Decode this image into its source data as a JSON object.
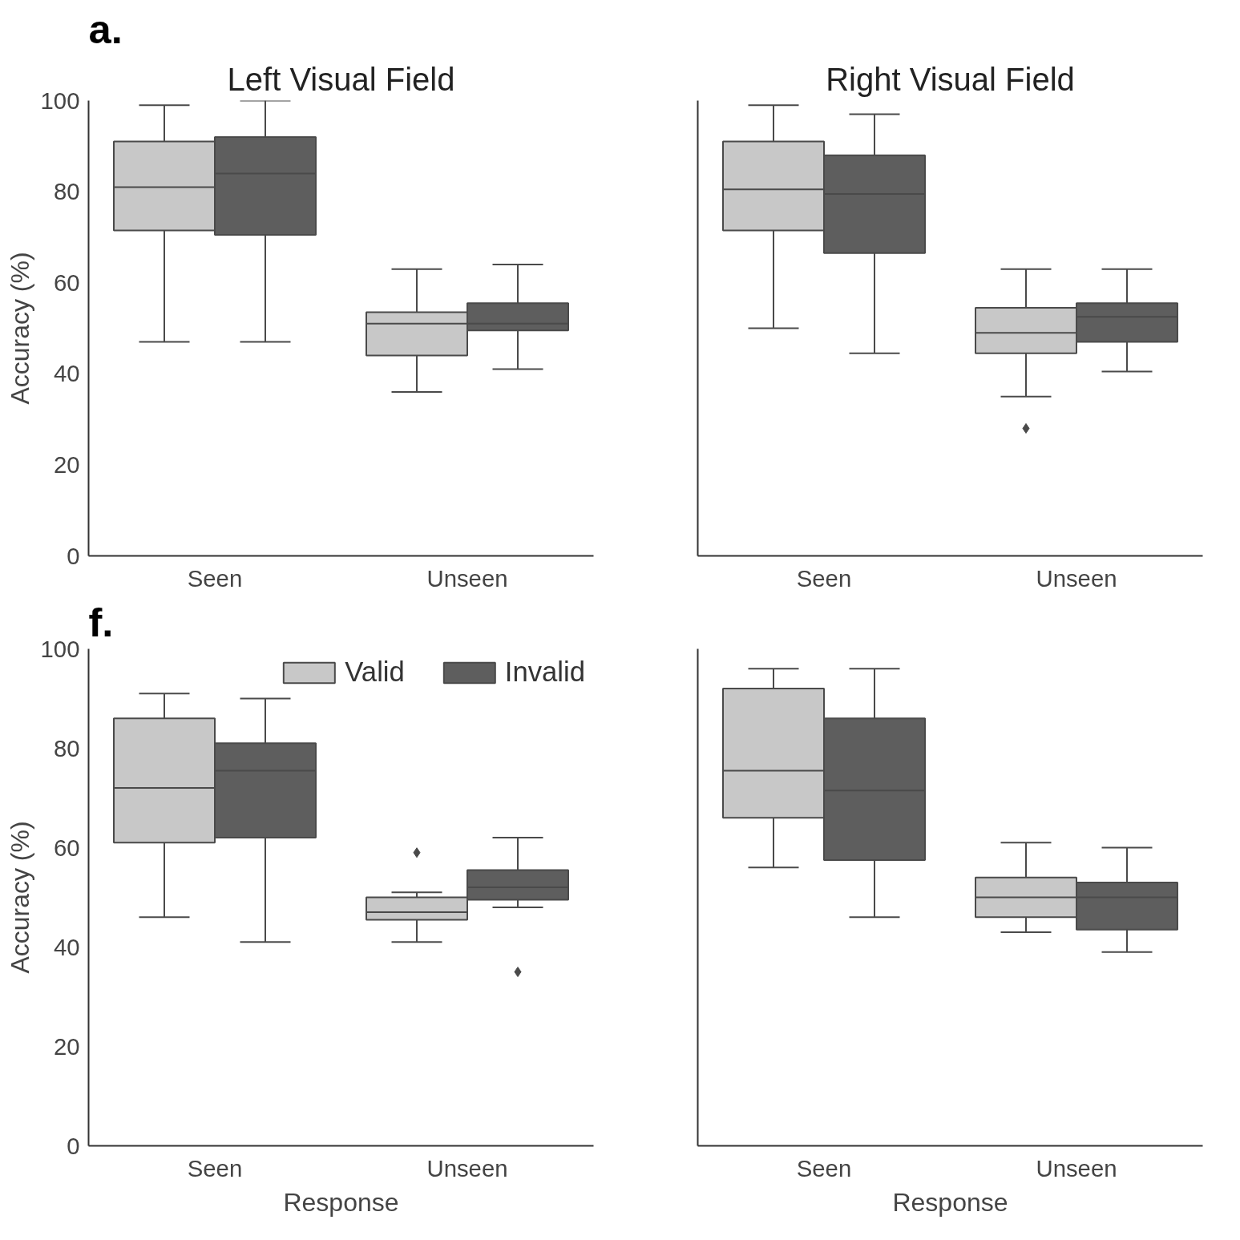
{
  "chart_data": [
    {
      "type": "box",
      "title": "Left Visual Field",
      "ylabel": "Accuracy (%)",
      "annotations": [
        "a."
      ],
      "categories": [
        "Seen",
        "Unseen"
      ],
      "ylim": [
        0,
        100
      ],
      "yticks": [
        0,
        20,
        40,
        60,
        80,
        100
      ],
      "grid": false,
      "legend": false,
      "series": [
        {
          "color": "#c8c8c8",
          "boxes": [
            {
              "low": 47,
              "q1": 71.5,
              "median": 81,
              "q3": 91,
              "high": 99
            },
            {
              "low": 36,
              "q1": 44,
              "median": 51,
              "q3": 53.5,
              "high": 63
            }
          ]
        },
        {
          "color": "#5e5e5e",
          "boxes": [
            {
              "low": 47,
              "q1": 70.5,
              "median": 84,
              "q3": 92,
              "high": 100
            },
            {
              "low": 41,
              "q1": 49.5,
              "median": 51,
              "q3": 55.5,
              "high": 64
            }
          ]
        }
      ]
    },
    {
      "type": "box",
      "title": "Right Visual Field",
      "categories": [
        "Seen",
        "Unseen"
      ],
      "ylim": [
        0,
        100
      ],
      "yticks": [
        0,
        20,
        40,
        60,
        80,
        100
      ],
      "tick_labels": "x",
      "grid": false,
      "legend": false,
      "series": [
        {
          "color": "#c8c8c8",
          "boxes": [
            {
              "low": 50,
              "q1": 71.5,
              "median": 80.5,
              "q3": 91,
              "high": 99
            },
            {
              "low": 35,
              "q1": 44.5,
              "median": 49,
              "q3": 54.5,
              "high": 63,
              "outliers": [
                28
              ]
            }
          ]
        },
        {
          "color": "#5e5e5e",
          "boxes": [
            {
              "low": 44.5,
              "q1": 66.5,
              "median": 79.5,
              "q3": 88,
              "high": 97
            },
            {
              "low": 40.5,
              "q1": 47,
              "median": 52.5,
              "q3": 55.5,
              "high": 63
            }
          ]
        }
      ]
    },
    {
      "type": "box",
      "xlabel": "Response",
      "ylabel": "Accuracy (%)",
      "annotations": [
        "f."
      ],
      "categories": [
        "Seen",
        "Unseen"
      ],
      "ylim": [
        0,
        100
      ],
      "yticks": [
        0,
        20,
        40,
        60,
        80,
        100
      ],
      "grid": false,
      "legend": "top right",
      "series": [
        {
          "name": "Valid",
          "color": "#c8c8c8",
          "boxes": [
            {
              "low": 46,
              "q1": 61,
              "median": 72,
              "q3": 86,
              "high": 91
            },
            {
              "low": 41,
              "q1": 45.5,
              "median": 47,
              "q3": 50,
              "high": 51,
              "outliers": [
                59
              ]
            }
          ]
        },
        {
          "name": "Invalid",
          "color": "#5e5e5e",
          "boxes": [
            {
              "low": 41,
              "q1": 62,
              "median": 75.5,
              "q3": 81,
              "high": 90
            },
            {
              "low": 48,
              "q1": 49.5,
              "median": 52,
              "q3": 55.5,
              "high": 62,
              "outliers": [
                35
              ]
            }
          ]
        }
      ]
    },
    {
      "type": "box",
      "xlabel": "Response",
      "categories": [
        "Seen",
        "Unseen"
      ],
      "ylim": [
        0,
        100
      ],
      "yticks": [
        0,
        20,
        40,
        60,
        80,
        100
      ],
      "tick_labels": "x",
      "grid": false,
      "legend": false,
      "series": [
        {
          "color": "#c8c8c8",
          "boxes": [
            {
              "low": 56,
              "q1": 66,
              "median": 75.5,
              "q3": 92,
              "high": 96
            },
            {
              "low": 43,
              "q1": 46,
              "median": 50,
              "q3": 54,
              "high": 61
            }
          ]
        },
        {
          "color": "#5e5e5e",
          "boxes": [
            {
              "low": 46,
              "q1": 57.5,
              "median": 71.5,
              "q3": 86,
              "high": 96
            },
            {
              "low": 39,
              "q1": 43.5,
              "median": 50,
              "q3": 53,
              "high": 60
            }
          ]
        }
      ]
    }
  ]
}
